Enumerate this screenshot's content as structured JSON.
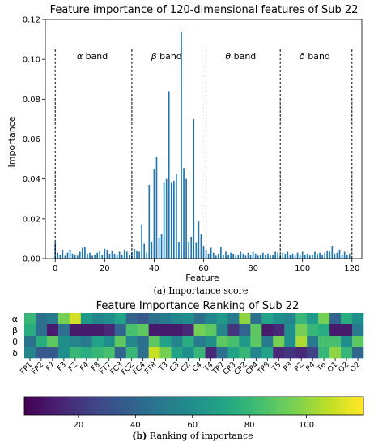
{
  "chart_data": [
    {
      "type": "bar",
      "title": "Feature importance of 120-dimensional features of Sub 22",
      "xlabel": "Feature",
      "ylabel": "Importance",
      "xlim": [
        -4,
        124
      ],
      "ylim": [
        0,
        0.12
      ],
      "x_ticks": [
        0,
        20,
        40,
        60,
        80,
        100,
        120
      ],
      "y_ticks": [
        0.0,
        0.02,
        0.04,
        0.06,
        0.08,
        0.1,
        0.12
      ],
      "x_tick_labels": [
        "0",
        "20",
        "40",
        "60",
        "80",
        "100",
        "120"
      ],
      "y_tick_labels": [
        "0.00",
        "0.02",
        "0.04",
        "0.06",
        "0.08",
        "0.10",
        "0.12"
      ],
      "color": "#1f77b4",
      "band_dividers": [
        0,
        31,
        61,
        91,
        120
      ],
      "band_labels": [
        {
          "sym": "α",
          "text": " band",
          "center": 15
        },
        {
          "sym": "β",
          "text": " band",
          "center": 45
        },
        {
          "sym": "θ",
          "text": " band",
          "center": 75
        },
        {
          "sym": "δ",
          "text": " band",
          "center": 105
        }
      ],
      "values": [
        0.0085,
        0.003,
        0.002,
        0.0045,
        0.0015,
        0.003,
        0.0045,
        0.0025,
        0.002,
        0.0015,
        0.0035,
        0.0055,
        0.006,
        0.0025,
        0.003,
        0.0015,
        0.002,
        0.003,
        0.004,
        0.002,
        0.005,
        0.0045,
        0.0025,
        0.004,
        0.0025,
        0.002,
        0.0035,
        0.002,
        0.0045,
        0.0035,
        0.002,
        0.003,
        0.005,
        0.004,
        0.0035,
        0.017,
        0.0075,
        0.003,
        0.037,
        0.0085,
        0.045,
        0.051,
        0.0105,
        0.0125,
        0.038,
        0.04,
        0.084,
        0.038,
        0.039,
        0.0425,
        0.0085,
        0.114,
        0.0455,
        0.04,
        0.0085,
        0.011,
        0.07,
        0.008,
        0.019,
        0.0125,
        0.0065,
        0.0045,
        0.0025,
        0.0055,
        0.003,
        0.0015,
        0.0025,
        0.006,
        0.002,
        0.0035,
        0.002,
        0.003,
        0.0025,
        0.0015,
        0.002,
        0.0035,
        0.0025,
        0.0015,
        0.003,
        0.002,
        0.0035,
        0.0025,
        0.0015,
        0.002,
        0.003,
        0.002,
        0.0025,
        0.0015,
        0.002,
        0.0035,
        0.003,
        0.002,
        0.003,
        0.0025,
        0.0035,
        0.002,
        0.0025,
        0.0015,
        0.003,
        0.002,
        0.0035,
        0.002,
        0.0025,
        0.0015,
        0.002,
        0.0035,
        0.0025,
        0.003,
        0.002,
        0.003,
        0.004,
        0.0035,
        0.0065,
        0.0025,
        0.003,
        0.0045,
        0.002,
        0.0035,
        0.002,
        0.0025
      ],
      "caption_letter": "(a)",
      "caption_text": " Importance score"
    },
    {
      "type": "heatmap",
      "title": "Feature Importance Ranking of Sub 22",
      "row_labels": [
        "α",
        "β",
        "θ",
        "δ"
      ],
      "col_labels": [
        "FP1",
        "FP2",
        "F7",
        "F3",
        "FZ",
        "F4",
        "F8",
        "FT7",
        "FC3",
        "FCZ",
        "FC4",
        "FT8",
        "T3",
        "C3",
        "CZ",
        "C4",
        "T4",
        "TP7",
        "CP3",
        "CPZ",
        "CP4",
        "TP8",
        "T5",
        "P3",
        "PZ",
        "P4",
        "T6",
        "O1",
        "OZ",
        "O2"
      ],
      "value_range": [
        1,
        120
      ],
      "colormap": "viridis",
      "colorbar_ticks": [
        20,
        40,
        60,
        80,
        100
      ],
      "colorbar_label_letter": "(b)",
      "colorbar_label_text": " Ranking of importance",
      "matrix": [
        [
          80,
          45,
          50,
          95,
          112,
          65,
          55,
          60,
          70,
          40,
          35,
          45,
          50,
          55,
          60,
          45,
          55,
          65,
          50,
          100,
          45,
          70,
          60,
          55,
          80,
          65,
          95,
          40,
          75,
          60
        ],
        [
          75,
          45,
          10,
          45,
          10,
          10,
          10,
          15,
          40,
          85,
          90,
          10,
          10,
          10,
          15,
          95,
          90,
          55,
          20,
          40,
          90,
          10,
          15,
          60,
          95,
          80,
          75,
          10,
          10,
          50
        ],
        [
          45,
          75,
          90,
          60,
          55,
          50,
          70,
          60,
          90,
          55,
          45,
          90,
          70,
          55,
          75,
          50,
          60,
          90,
          85,
          65,
          90,
          50,
          95,
          60,
          105,
          50,
          85,
          85,
          60,
          90
        ],
        [
          55,
          35,
          35,
          60,
          80,
          75,
          80,
          85,
          40,
          80,
          45,
          110,
          95,
          70,
          60,
          80,
          15,
          45,
          70,
          80,
          55,
          70,
          15,
          20,
          15,
          25,
          80,
          100,
          80,
          40
        ]
      ]
    }
  ]
}
